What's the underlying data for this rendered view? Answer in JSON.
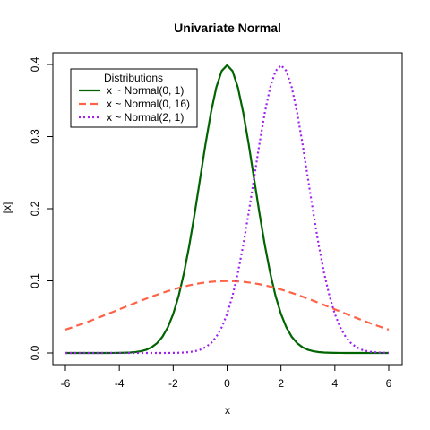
{
  "chart_data": {
    "type": "line",
    "title": "Univariate Normal",
    "xlabel": "x",
    "ylabel": "[x]",
    "xlim": [
      -6,
      6
    ],
    "ylim": [
      0,
      0.4
    ],
    "x_ticks": [
      -6,
      -4,
      -2,
      0,
      2,
      4,
      6
    ],
    "y_ticks": [
      0.0,
      0.1,
      0.2,
      0.3,
      0.4
    ],
    "y_tick_labels": [
      "0.0",
      "0.1",
      "0.2",
      "0.3",
      "0.4"
    ],
    "grid": false,
    "legend": {
      "title": "Distributions",
      "placement": "top-left"
    },
    "series": [
      {
        "name": "x ~ Normal(0, 1)",
        "color": "#006400",
        "dash": "solid",
        "mean": 0,
        "sd": 1
      },
      {
        "name": "x ~ Normal(0, 16)",
        "color": "#ff6347",
        "dash": "dashed",
        "mean": 0,
        "sd": 4
      },
      {
        "name": "x ~ Normal(2, 1)",
        "color": "#a020f0",
        "dash": "dotted",
        "mean": 2,
        "sd": 1
      }
    ]
  }
}
